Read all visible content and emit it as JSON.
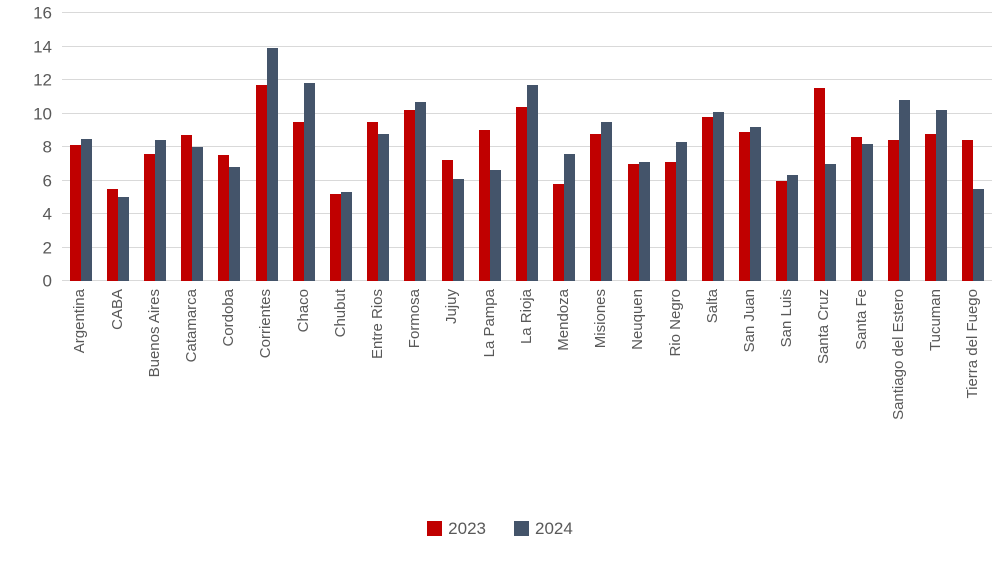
{
  "chart_data": {
    "type": "bar",
    "title": "",
    "xlabel": "",
    "ylabel": "",
    "categories": [
      "Argentina",
      "CABA",
      "Buenos Aires",
      "Catamarca",
      "Cordoba",
      "Corrientes",
      "Chaco",
      "Chubut",
      "Entre Rios",
      "Formosa",
      "Jujuy",
      "La Pampa",
      "La Rioja",
      "Mendoza",
      "Misiones",
      "Neuquen",
      "Rio Negro",
      "Salta",
      "San Juan",
      "San Luis",
      "Santa Cruz",
      "Santa Fe",
      "Santiago del Estero",
      "Tucuman",
      "Tierra del Fuego"
    ],
    "series": [
      {
        "name": "2023",
        "color": "#C00000",
        "values": [
          8.1,
          5.5,
          7.6,
          8.7,
          7.5,
          11.7,
          9.5,
          5.2,
          9.5,
          10.2,
          7.2,
          9.0,
          10.4,
          5.8,
          8.8,
          7.0,
          7.1,
          9.8,
          8.9,
          6.0,
          11.5,
          8.6,
          8.4,
          8.8,
          8.4
        ]
      },
      {
        "name": "2024",
        "color": "#44546A",
        "values": [
          8.5,
          5.0,
          8.4,
          8.0,
          6.8,
          13.9,
          11.8,
          5.3,
          8.8,
          10.7,
          6.1,
          6.6,
          11.7,
          7.6,
          9.5,
          7.1,
          8.3,
          10.1,
          9.2,
          6.3,
          7.0,
          8.2,
          10.8,
          10.2,
          5.5
        ]
      }
    ],
    "ylim": [
      0,
      16
    ],
    "yticks": [
      0,
      2,
      4,
      6,
      8,
      10,
      12,
      14,
      16
    ],
    "grid": true,
    "legend_position": "bottom",
    "gridline_color": "#D9D9D9",
    "text_color": "#595959"
  }
}
